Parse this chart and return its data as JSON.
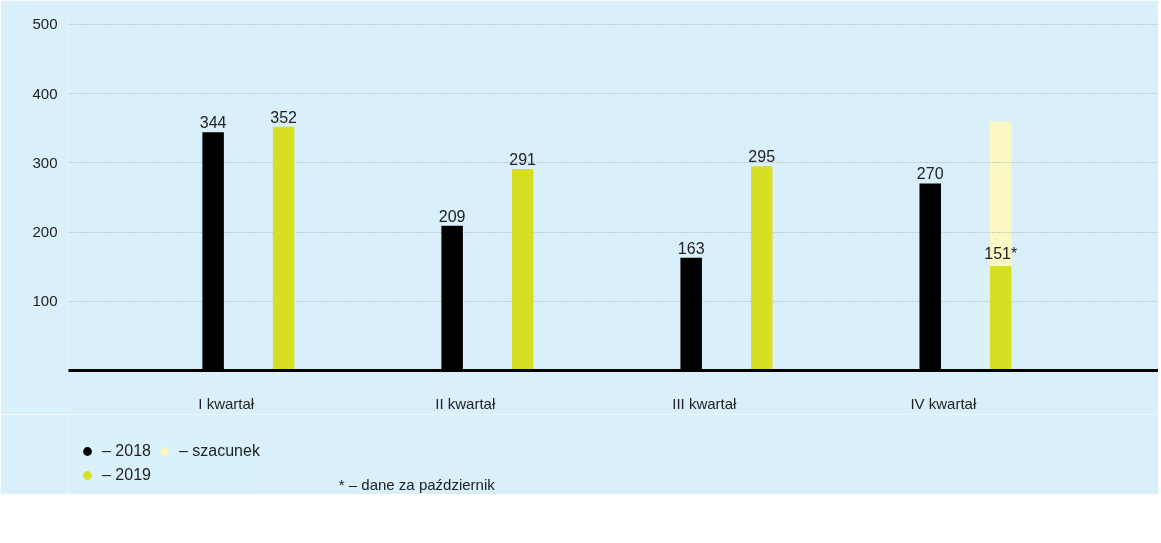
{
  "chart_data": {
    "type": "bar",
    "categories": [
      "I kwartał",
      "II kwartał",
      "III kwartał",
      "IV kwartał"
    ],
    "series": [
      {
        "name": "– 2018",
        "color": "#000000",
        "values": [
          344,
          209,
          163,
          270
        ],
        "value_labels": [
          "344",
          "209",
          "163",
          "270"
        ]
      },
      {
        "name": "– 2019",
        "color": "#d7df23",
        "values": [
          352,
          291,
          295,
          151
        ],
        "value_labels": [
          "352",
          "291",
          "295",
          "151*"
        ]
      },
      {
        "name": "– szacunek",
        "color": "#fbf8c4",
        "values": [
          null,
          null,
          null,
          360
        ]
      }
    ],
    "ylim": [
      0,
      520
    ],
    "yticks": [
      100,
      200,
      300,
      400,
      500
    ],
    "grid": "y",
    "legend": "bottom left",
    "annotations": [
      "* – dane za październik"
    ]
  }
}
